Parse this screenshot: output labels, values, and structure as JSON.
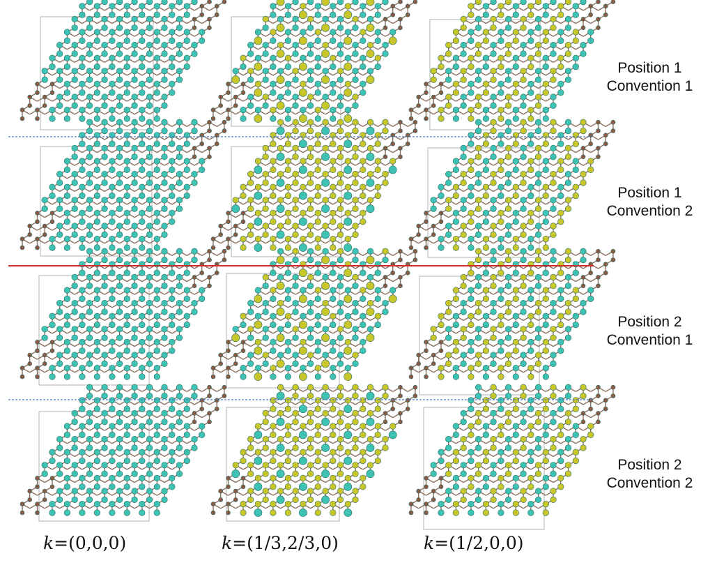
{
  "rows": [
    {
      "line1": "Position 1",
      "line2": "Convention 1"
    },
    {
      "line1": "Position 1",
      "line2": "Convention 2"
    },
    {
      "line1": "Position 2",
      "line2": "Convention 1"
    },
    {
      "line1": "Position 2",
      "line2": "Convention 2"
    }
  ],
  "columns": [
    {
      "k_symbol": "k",
      "k_value": "=(0,0,0)"
    },
    {
      "k_symbol": "k",
      "k_value": "=(1/3,2/3,0)"
    },
    {
      "k_symbol": "k",
      "k_value": "=(1/2,0,0)"
    }
  ],
  "colors": {
    "cyan_atom": "#3ec2b4",
    "yellow_atom": "#c9c62a",
    "brown_atom": "#8a5a44",
    "bond": "#8a6f5f",
    "cell_border": "#b0b0b0",
    "dashed_separator": "#4a7cc4",
    "solid_separator": "#d42a2a"
  },
  "legend": {
    "atom_types": [
      "cyan",
      "yellow",
      "brown"
    ]
  }
}
